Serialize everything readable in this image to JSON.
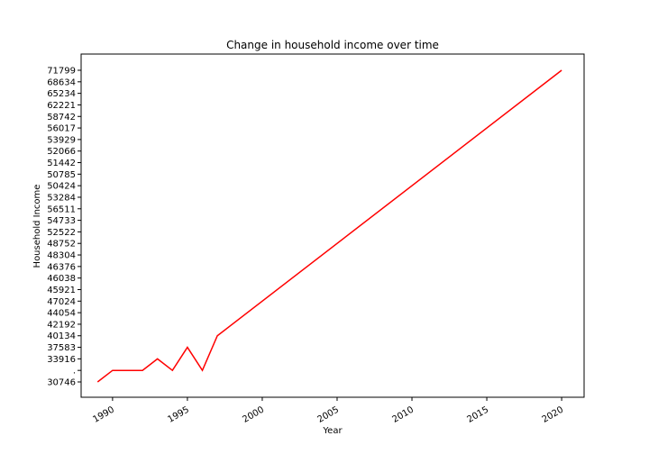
{
  "chart_data": {
    "type": "line",
    "title": "Change in household income over time",
    "xlabel": "Year",
    "ylabel": "Household Income",
    "xlim": [
      1987.9,
      2021.5
    ],
    "x_ticks": [
      1990,
      1995,
      2000,
      2005,
      2010,
      2015,
      2020
    ],
    "y_ticks": [
      "30746",
      ".",
      "33916",
      "37583",
      "40134",
      "42192",
      "44054",
      "47024",
      "45921",
      "46038",
      "46376",
      "48304",
      "48752",
      "52522",
      "54733",
      "56511",
      "53284",
      "50424",
      "50785",
      "51442",
      "52066",
      "53929",
      "56017",
      "58742",
      "62221",
      "65234",
      "68634",
      "71799"
    ],
    "grid": false,
    "series": [
      {
        "color": "#ff0000",
        "x": [
          1989,
          1990,
          1991,
          1992,
          1993,
          1994,
          1995,
          1996,
          1997,
          2020
        ],
        "y": [
          "30746",
          ".",
          ".",
          ".",
          "33916",
          ".",
          "37583",
          ".",
          "40134",
          "71799"
        ]
      }
    ]
  }
}
